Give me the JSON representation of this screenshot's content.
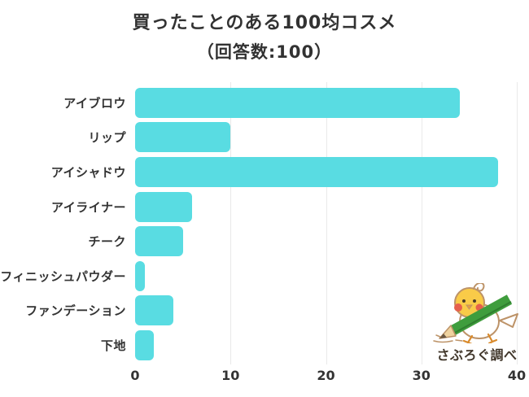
{
  "title": {
    "line1": "買ったことのある100均コスメ",
    "line2": "（回答数:100）"
  },
  "chart_data": {
    "type": "bar",
    "orientation": "horizontal",
    "title": "買ったことのある100均コスメ（回答数:100）",
    "categories": [
      "アイブロウ",
      "リップ",
      "アイシャドウ",
      "アイライナー",
      "チーク",
      "フィニッシュパウダー",
      "ファンデーション",
      "下地"
    ],
    "values": [
      34,
      10,
      38,
      6,
      5,
      1,
      4,
      2
    ],
    "xlabel": "",
    "ylabel": "",
    "xlim": [
      0,
      40
    ],
    "x_ticks": [
      0,
      10,
      20,
      30,
      40
    ],
    "grid": true,
    "legend": "none"
  },
  "colors": {
    "bar": "#59DCE2",
    "gridline": "#e9e9e9",
    "text": "#333333",
    "watermark_text": "#40362a",
    "mascot_yellow": "#F9CB48",
    "mascot_cheek": "#E5604C",
    "mascot_pencil_green": "#3F9D3D",
    "mascot_outline": "#bd9368"
  },
  "watermark": {
    "label": "さぶろぐ調べ",
    "mascot_icon": "chick-with-pencil-icon"
  }
}
